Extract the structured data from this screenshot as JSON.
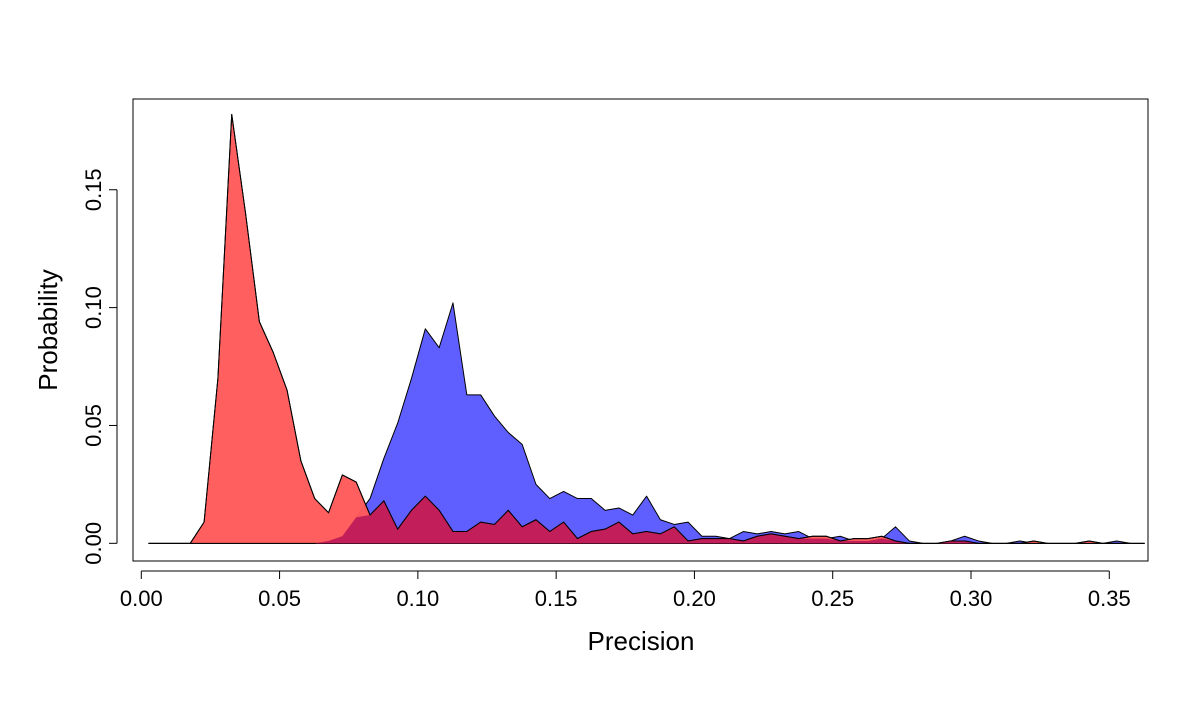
{
  "chart_data": {
    "type": "area",
    "title": "",
    "xlabel": "Precision",
    "ylabel": "Probability",
    "xlim": [
      -0.003,
      0.364
    ],
    "ylim": [
      -0.0075,
      0.1885
    ],
    "xticks": [
      0.0,
      0.05,
      0.1,
      0.15,
      0.2,
      0.25,
      0.3,
      0.35
    ],
    "xtick_labels": [
      "0.00",
      "0.05",
      "0.10",
      "0.15",
      "0.20",
      "0.25",
      "0.30",
      "0.35"
    ],
    "yticks": [
      0.0,
      0.05,
      0.1,
      0.15
    ],
    "ytick_labels": [
      "0.00",
      "0.05",
      "0.10",
      "0.15"
    ],
    "grid": false,
    "legend": "none",
    "x": [
      0.0027,
      0.0077,
      0.0127,
      0.0177,
      0.0227,
      0.0277,
      0.0327,
      0.0377,
      0.0427,
      0.0477,
      0.0527,
      0.0577,
      0.0627,
      0.0677,
      0.0727,
      0.0777,
      0.0827,
      0.0877,
      0.0927,
      0.0977,
      0.1027,
      0.1077,
      0.1127,
      0.1177,
      0.1227,
      0.1277,
      0.1327,
      0.1377,
      0.1427,
      0.1477,
      0.1527,
      0.1577,
      0.1627,
      0.1677,
      0.1727,
      0.1777,
      0.1827,
      0.1877,
      0.1927,
      0.1977,
      0.2027,
      0.2077,
      0.2127,
      0.2177,
      0.2227,
      0.2277,
      0.2327,
      0.2377,
      0.2427,
      0.2477,
      0.2527,
      0.2577,
      0.2627,
      0.2677,
      0.2727,
      0.2777,
      0.2827,
      0.2877,
      0.2927,
      0.2977,
      0.3027,
      0.3077,
      0.3127,
      0.3177,
      0.3227,
      0.3277,
      0.3327,
      0.3377,
      0.3427,
      0.3477,
      0.3527,
      0.3577,
      0.3627
    ],
    "series": [
      {
        "color": "#5a5aff",
        "values": [
          0,
          0,
          0,
          0,
          0,
          0,
          0,
          0,
          0,
          0,
          0,
          0,
          0,
          0.001,
          0.003,
          0.011,
          0.019,
          0.036,
          0.051,
          0.07,
          0.091,
          0.083,
          0.102,
          0.063,
          0.063,
          0.054,
          0.047,
          0.042,
          0.025,
          0.019,
          0.022,
          0.019,
          0.019,
          0.014,
          0.015,
          0.012,
          0.02,
          0.01,
          0.008,
          0.009,
          0.003,
          0.003,
          0.002,
          0.005,
          0.004,
          0.005,
          0.004,
          0.005,
          0.002,
          0.002,
          0.003,
          0.001,
          0.001,
          0.002,
          0.007,
          0.001,
          0,
          0,
          0.001,
          0.003,
          0.001,
          0,
          0,
          0.001,
          0,
          0,
          0,
          0,
          0,
          0,
          0.001,
          0,
          0
        ]
      },
      {
        "color": "#ff5a5a",
        "values": [
          0,
          0,
          0,
          0,
          0.009,
          0.07,
          0.182,
          0.14,
          0.094,
          0.081,
          0.065,
          0.035,
          0.019,
          0.013,
          0.029,
          0.026,
          0.012,
          0.018,
          0.006,
          0.014,
          0.02,
          0.014,
          0.005,
          0.005,
          0.009,
          0.008,
          0.014,
          0.007,
          0.01,
          0.005,
          0.009,
          0.002,
          0.005,
          0.006,
          0.009,
          0.004,
          0.005,
          0.004,
          0.007,
          0.001,
          0.002,
          0.002,
          0.002,
          0.001,
          0.003,
          0.004,
          0.003,
          0.002,
          0.003,
          0.003,
          0.001,
          0.002,
          0.002,
          0.003,
          0.001,
          0,
          0,
          0,
          0.001,
          0.001,
          0,
          0,
          0,
          0,
          0.001,
          0,
          0,
          0,
          0.001,
          0,
          0,
          0,
          0
        ]
      }
    ]
  }
}
